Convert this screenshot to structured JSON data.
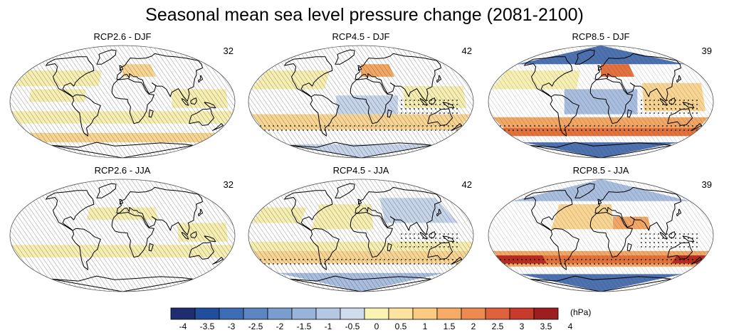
{
  "title": "Seasonal mean sea level pressure change (2081-2100)",
  "panels": [
    {
      "label": "RCP2.6 - DJF",
      "count": "32",
      "scenario": "RCP2.6",
      "season": "DJF"
    },
    {
      "label": "RCP4.5 - DJF",
      "count": "42",
      "scenario": "RCP4.5",
      "season": "DJF"
    },
    {
      "label": "RCP8.5 - DJF",
      "count": "39",
      "scenario": "RCP8.5",
      "season": "DJF"
    },
    {
      "label": "RCP2.6 - JJA",
      "count": "32",
      "scenario": "RCP2.6",
      "season": "JJA"
    },
    {
      "label": "RCP4.5 - JJA",
      "count": "42",
      "scenario": "RCP4.5",
      "season": "JJA"
    },
    {
      "label": "RCP8.5 - JJA",
      "count": "39",
      "scenario": "RCP8.5",
      "season": "JJA"
    }
  ],
  "colorbar": {
    "unit": "(hPa)",
    "ticks": [
      "-4",
      "-3.5",
      "-3",
      "-2.5",
      "-2",
      "-1.5",
      "-1",
      "-0.5",
      "0",
      "0.5",
      "1",
      "1.5",
      "2",
      "2.5",
      "3",
      "3.5",
      "4"
    ],
    "colors": [
      "#1e2d6e",
      "#1f4e9c",
      "#3d6db5",
      "#5b86c2",
      "#7a9dcf",
      "#98b4da",
      "#b4c8e3",
      "#cfdcee",
      "#fbf3b3",
      "#fde3a0",
      "#fcca80",
      "#f7ac66",
      "#ee8a4f",
      "#e0623d",
      "#c83a2c",
      "#9c1e1f"
    ]
  },
  "colors": {
    "neutral_blue": "#a9bedf",
    "light_blue": "#c6d5ea",
    "pale_yellow": "#f7efb1",
    "light_orange": "#f9d593",
    "orange": "#f2a765",
    "deep_orange": "#e4723f",
    "dark_red": "#b92c22",
    "deep_blue": "#4e72b0",
    "hatch": "#1a1a1a"
  }
}
